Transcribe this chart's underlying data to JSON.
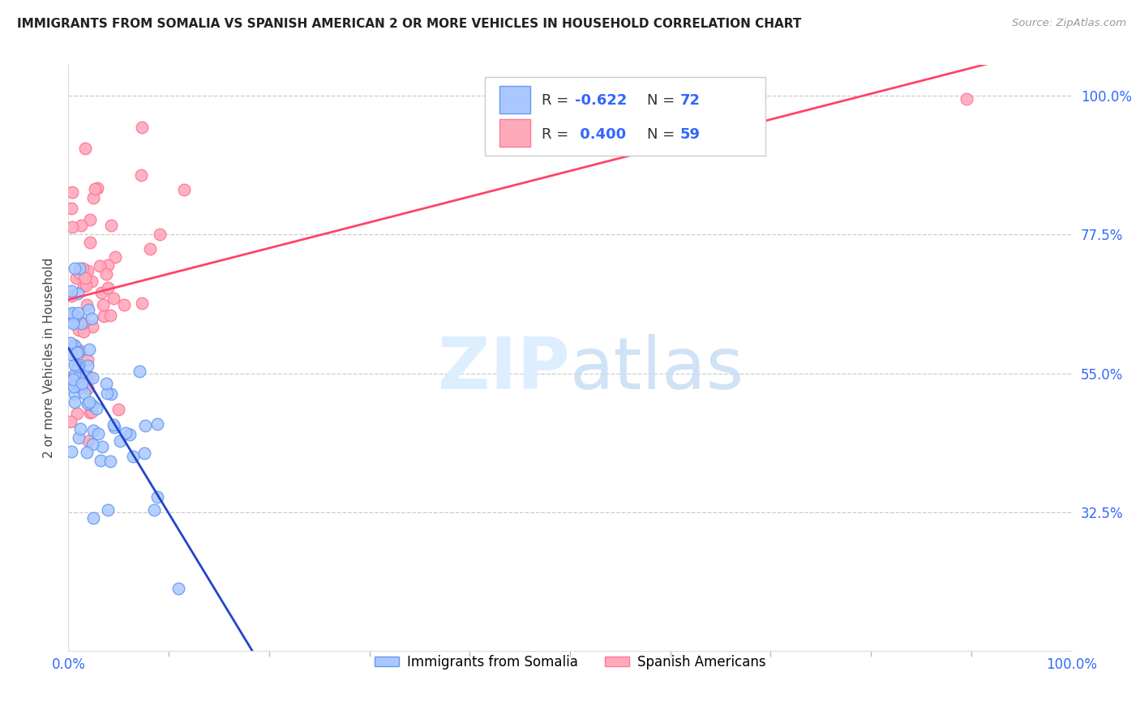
{
  "title": "IMMIGRANTS FROM SOMALIA VS SPANISH AMERICAN 2 OR MORE VEHICLES IN HOUSEHOLD CORRELATION CHART",
  "source": "Source: ZipAtlas.com",
  "ylabel": "2 or more Vehicles in Household",
  "xlim": [
    0.0,
    1.0
  ],
  "ylim": [
    0.1,
    1.05
  ],
  "ytick_positions": [
    0.325,
    0.55,
    0.775,
    1.0
  ],
  "ytick_labels": [
    "32.5%",
    "55.0%",
    "77.5%",
    "100.0%"
  ],
  "xtick_positions": [
    0.0,
    1.0
  ],
  "xtick_labels": [
    "0.0%",
    "100.0%"
  ],
  "grid_color": "#cccccc",
  "background_color": "#ffffff",
  "somalia_face": "#aac8ff",
  "somalia_edge": "#6699ee",
  "spanish_face": "#ffaabb",
  "spanish_edge": "#ff7799",
  "somalia_line_color": "#2244cc",
  "spanish_line_color": "#ff4466",
  "watermark_color": "#ddeeff",
  "tick_label_color": "#3366ff",
  "ylabel_color": "#444444",
  "title_color": "#222222",
  "source_color": "#999999"
}
